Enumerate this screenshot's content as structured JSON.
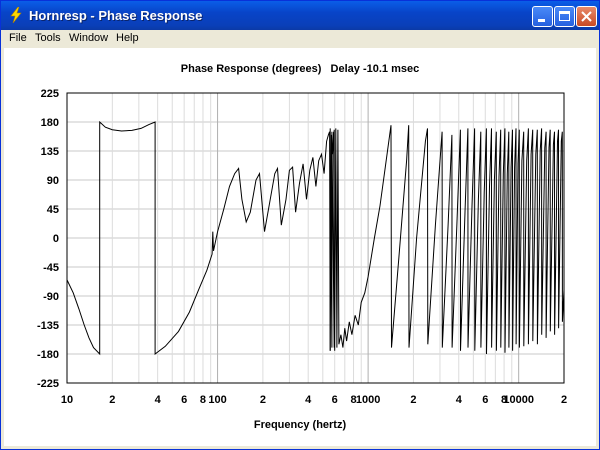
{
  "window": {
    "title": "Hornresp - Phase Response",
    "controls": {
      "minimize": "minimize",
      "maximize": "maximize",
      "close": "close"
    }
  },
  "menu": [
    {
      "label": "File"
    },
    {
      "label": "Tools"
    },
    {
      "label": "Window"
    },
    {
      "label": "Help"
    }
  ],
  "chart_data": {
    "type": "line",
    "title": "Phase Response (degrees)   Delay -10.1 msec",
    "xlabel": "Frequency (hertz)",
    "ylabel": "",
    "xscale": "log",
    "xlim": [
      10,
      20000
    ],
    "ylim": [
      -225,
      225
    ],
    "y_ticks": [
      "225",
      "180",
      "135",
      "90",
      "45",
      "0",
      "-45",
      "-90",
      "-135",
      "-180",
      "-225"
    ],
    "x_ticks": [
      {
        "value": 10,
        "label": "10"
      },
      {
        "value": 20,
        "label": "2"
      },
      {
        "value": 40,
        "label": "4"
      },
      {
        "value": 60,
        "label": "6"
      },
      {
        "value": 80,
        "label": "8"
      },
      {
        "value": 100,
        "label": "100"
      },
      {
        "value": 200,
        "label": "2"
      },
      {
        "value": 400,
        "label": "4"
      },
      {
        "value": 600,
        "label": "6"
      },
      {
        "value": 800,
        "label": "8"
      },
      {
        "value": 1000,
        "label": "1000"
      },
      {
        "value": 2000,
        "label": "2"
      },
      {
        "value": 4000,
        "label": "4"
      },
      {
        "value": 6000,
        "label": "6"
      },
      {
        "value": 8000,
        "label": "8"
      },
      {
        "value": 10000,
        "label": "10000"
      },
      {
        "value": 20000,
        "label": "2"
      }
    ],
    "grid": true,
    "series": [
      {
        "color": "#000000",
        "points": [
          [
            10,
            -65
          ],
          [
            11,
            -85
          ],
          [
            12,
            -110
          ],
          [
            13,
            -135
          ],
          [
            14,
            -155
          ],
          [
            15,
            -170
          ],
          [
            16.5,
            -180
          ],
          [
            16.5,
            180
          ],
          [
            18,
            172
          ],
          [
            20,
            168
          ],
          [
            23,
            166
          ],
          [
            27,
            167
          ],
          [
            31,
            170
          ],
          [
            35,
            176
          ],
          [
            38.5,
            180
          ],
          [
            38.5,
            -180
          ],
          [
            45,
            -168
          ],
          [
            55,
            -145
          ],
          [
            65,
            -115
          ],
          [
            75,
            -80
          ],
          [
            85,
            -50
          ],
          [
            92,
            -25
          ],
          [
            93,
            10
          ],
          [
            94,
            -20
          ],
          [
            100,
            10
          ],
          [
            110,
            45
          ],
          [
            120,
            80
          ],
          [
            130,
            100
          ],
          [
            138,
            108
          ],
          [
            145,
            60
          ],
          [
            155,
            25
          ],
          [
            165,
            40
          ],
          [
            180,
            90
          ],
          [
            190,
            100
          ],
          [
            205,
            10
          ],
          [
            220,
            50
          ],
          [
            240,
            100
          ],
          [
            250,
            108
          ],
          [
            265,
            20
          ],
          [
            285,
            60
          ],
          [
            300,
            105
          ],
          [
            315,
            110
          ],
          [
            330,
            40
          ],
          [
            350,
            85
          ],
          [
            370,
            115
          ],
          [
            390,
            60
          ],
          [
            410,
            105
          ],
          [
            430,
            125
          ],
          [
            450,
            80
          ],
          [
            470,
            120
          ],
          [
            490,
            130
          ],
          [
            510,
            100
          ],
          [
            530,
            150
          ],
          [
            545,
            160
          ],
          [
            555,
            165
          ],
          [
            560,
            -175
          ],
          [
            570,
            160
          ],
          [
            580,
            130
          ],
          [
            590,
            165
          ],
          [
            600,
            -175
          ],
          [
            610,
            170
          ],
          [
            620,
            -170
          ],
          [
            630,
            168
          ],
          [
            640,
            -165
          ],
          [
            660,
            -150
          ],
          [
            680,
            -170
          ],
          [
            700,
            -140
          ],
          [
            720,
            -160
          ],
          [
            750,
            -130
          ],
          [
            780,
            -150
          ],
          [
            820,
            -120
          ],
          [
            860,
            -135
          ],
          [
            900,
            -100
          ],
          [
            950,
            -85
          ],
          [
            1000,
            -60
          ],
          [
            1100,
            0
          ],
          [
            1200,
            50
          ],
          [
            1300,
            110
          ],
          [
            1420,
            175
          ],
          [
            1430,
            -170
          ],
          [
            1600,
            -30
          ],
          [
            1800,
            120
          ],
          [
            1860,
            175
          ],
          [
            1870,
            -170
          ],
          [
            2100,
            0
          ],
          [
            2400,
            150
          ],
          [
            2480,
            170
          ],
          [
            2490,
            -165
          ],
          [
            2800,
            20
          ],
          [
            3100,
            165
          ],
          [
            3110,
            -170
          ],
          [
            3400,
            20
          ],
          [
            3600,
            160
          ],
          [
            3610,
            -170
          ],
          [
            3900,
            30
          ],
          [
            4100,
            168
          ],
          [
            4110,
            -175
          ],
          [
            4400,
            40
          ],
          [
            4600,
            170
          ],
          [
            4610,
            -170
          ],
          [
            4900,
            50
          ],
          [
            5100,
            170
          ],
          [
            5110,
            -175
          ],
          [
            5400,
            60
          ],
          [
            5600,
            165
          ],
          [
            5610,
            -170
          ],
          [
            5900,
            70
          ],
          [
            6100,
            170
          ],
          [
            6110,
            -180
          ],
          [
            6400,
            80
          ],
          [
            6600,
            170
          ],
          [
            6610,
            -170
          ],
          [
            6900,
            90
          ],
          [
            7100,
            165
          ],
          [
            7110,
            -175
          ],
          [
            7400,
            95
          ],
          [
            7600,
            168
          ],
          [
            7610,
            -170
          ],
          [
            7900,
            100
          ],
          [
            8100,
            170
          ],
          [
            8110,
            -178
          ],
          [
            8400,
            100
          ],
          [
            8600,
            165
          ],
          [
            8610,
            -170
          ],
          [
            8900,
            110
          ],
          [
            9100,
            168
          ],
          [
            9110,
            -175
          ],
          [
            9400,
            110
          ],
          [
            9600,
            170
          ],
          [
            9610,
            -165
          ],
          [
            9900,
            115
          ],
          [
            10100,
            168
          ],
          [
            10110,
            -170
          ],
          [
            10500,
            120
          ],
          [
            10800,
            165
          ],
          [
            10810,
            -168
          ],
          [
            11300,
            120
          ],
          [
            11600,
            170
          ],
          [
            11610,
            -165
          ],
          [
            12100,
            130
          ],
          [
            12400,
            168
          ],
          [
            12410,
            -160
          ],
          [
            13000,
            130
          ],
          [
            13300,
            168
          ],
          [
            13310,
            -165
          ],
          [
            13900,
            135
          ],
          [
            14200,
            170
          ],
          [
            14210,
            -150
          ],
          [
            14900,
            140
          ],
          [
            15200,
            165
          ],
          [
            15210,
            -155
          ],
          [
            15900,
            140
          ],
          [
            16200,
            168
          ],
          [
            16210,
            -145
          ],
          [
            17000,
            145
          ],
          [
            17300,
            165
          ],
          [
            17310,
            -150
          ],
          [
            18100,
            150
          ],
          [
            18400,
            168
          ],
          [
            18410,
            -140
          ],
          [
            19200,
            150
          ],
          [
            19500,
            165
          ],
          [
            19510,
            -130
          ],
          [
            20000,
            -80
          ]
        ]
      },
      {
        "color": "#000000",
        "points": [
          [
            560,
            -175
          ],
          [
            560,
            170
          ],
          [
            575,
            -170
          ],
          [
            575,
            165
          ],
          [
            595,
            -170
          ],
          [
            595,
            168
          ]
        ]
      }
    ]
  }
}
